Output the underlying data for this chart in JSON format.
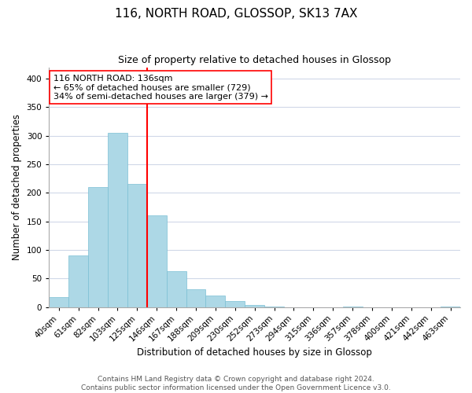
{
  "title": "116, NORTH ROAD, GLOSSOP, SK13 7AX",
  "subtitle": "Size of property relative to detached houses in Glossop",
  "xlabel": "Distribution of detached houses by size in Glossop",
  "ylabel": "Number of detached properties",
  "bar_labels": [
    "40sqm",
    "61sqm",
    "82sqm",
    "103sqm",
    "125sqm",
    "146sqm",
    "167sqm",
    "188sqm",
    "209sqm",
    "230sqm",
    "252sqm",
    "273sqm",
    "294sqm",
    "315sqm",
    "336sqm",
    "357sqm",
    "378sqm",
    "400sqm",
    "421sqm",
    "442sqm",
    "463sqm"
  ],
  "bar_values": [
    17,
    90,
    210,
    305,
    215,
    160,
    63,
    31,
    20,
    10,
    4,
    1,
    0,
    0,
    0,
    1,
    0,
    0,
    0,
    0,
    1
  ],
  "bar_color": "#add8e6",
  "bar_edge_color": "#7bbfd4",
  "vline_color": "red",
  "vline_x_index": 5,
  "annotation_line1": "116 NORTH ROAD: 136sqm",
  "annotation_line2": "← 65% of detached houses are smaller (729)",
  "annotation_line3": "34% of semi-detached houses are larger (379) →",
  "ylim": [
    0,
    420
  ],
  "yticks": [
    0,
    50,
    100,
    150,
    200,
    250,
    300,
    350,
    400
  ],
  "footer_line1": "Contains HM Land Registry data © Crown copyright and database right 2024.",
  "footer_line2": "Contains public sector information licensed under the Open Government Licence v3.0.",
  "background_color": "#ffffff",
  "grid_color": "#d0d8e8",
  "title_fontsize": 11,
  "subtitle_fontsize": 9,
  "axis_label_fontsize": 8.5,
  "tick_fontsize": 7.5,
  "footer_fontsize": 6.5,
  "annotation_fontsize": 8
}
